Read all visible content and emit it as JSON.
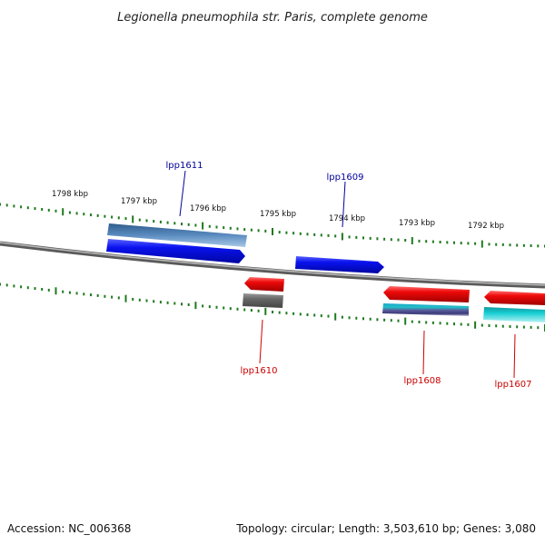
{
  "title": "Legionella pneumophila str. Paris, complete genome",
  "footer": {
    "accession": "Accession: NC_006368",
    "summary": "Topology: circular; Length: 3,503,610 bp; Genes: 3,080"
  },
  "ruler": {
    "labels": [
      "1798 kbp",
      "1797 kbp",
      "1796 kbp",
      "1795 kbp",
      "1794 kbp",
      "1793 kbp",
      "1792 kbp"
    ]
  },
  "genes": {
    "lpp1611": "lpp1611",
    "lpp1609": "lpp1609",
    "lpp1610": "lpp1610",
    "lpp1608": "lpp1608",
    "lpp1607": "lpp1607"
  },
  "colors": {
    "forward_label": "#00009b",
    "reverse_label": "#cc0000",
    "tick": "#1f7a1f",
    "backbone": "#777777",
    "blue_cds": "#0a12ee",
    "steel_feature": "#4a78a8",
    "red_cds": "#ee0a0a",
    "grey_feature": "#666666",
    "cyan_feature": "#16c8cc"
  }
}
